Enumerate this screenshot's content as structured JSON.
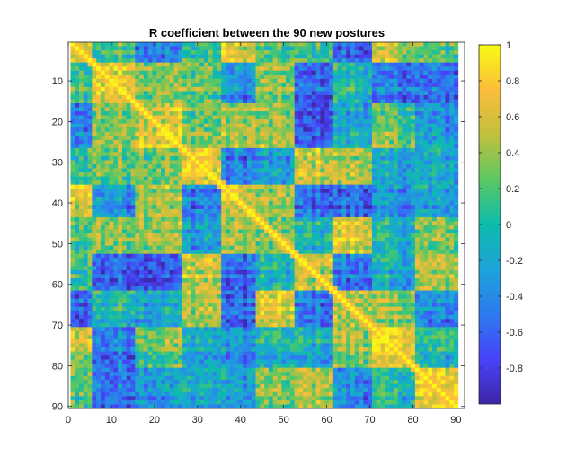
{
  "chart_data": {
    "type": "heatmap",
    "title": "R coefficient between the 90 new postures",
    "xlabel": "",
    "ylabel": "",
    "n": 90,
    "xlim": [
      0,
      92
    ],
    "ylim": [
      90.5,
      0.5
    ],
    "x_ticks": [
      0,
      10,
      20,
      30,
      40,
      50,
      60,
      70,
      80,
      90
    ],
    "y_ticks": [
      10,
      20,
      30,
      40,
      50,
      60,
      70,
      80,
      90
    ],
    "color_range": [
      -1,
      1
    ],
    "colorbar_ticks": [
      1,
      0.8,
      0.6,
      0.4,
      0.2,
      0,
      -0.2,
      -0.4,
      -0.6,
      -0.8
    ],
    "colorbar_tick_labels": [
      "1",
      "0.8",
      "0.6",
      "0.4",
      "0.2",
      "0",
      "-0.2",
      "-0.4",
      "-0.6",
      "-0.8"
    ],
    "colormap": "parula",
    "colormap_stops": [
      "#3e26a8",
      "#4743f8",
      "#2d7aee",
      "#1ea3da",
      "#0dbbab",
      "#5bc862",
      "#c1c03d",
      "#fbbe3b",
      "#f9fa14"
    ],
    "diagonal_value": 1,
    "blocks": [
      {
        "start": 1,
        "end": 5,
        "value": 0.6
      },
      {
        "start": 6,
        "end": 15,
        "value": 0.7
      },
      {
        "start": 16,
        "end": 26,
        "value": 0.65
      },
      {
        "start": 27,
        "end": 35,
        "value": 0.7
      },
      {
        "start": 36,
        "end": 43,
        "value": 0.55
      },
      {
        "start": 44,
        "end": 52,
        "value": 0.3
      },
      {
        "start": 53,
        "end": 61,
        "value": 0.55
      },
      {
        "start": 62,
        "end": 70,
        "value": 0.5
      },
      {
        "start": 71,
        "end": 80,
        "value": 0.7
      },
      {
        "start": 81,
        "end": 90,
        "value": 0.7
      }
    ],
    "grid": false,
    "legend": "colorbar-right"
  }
}
